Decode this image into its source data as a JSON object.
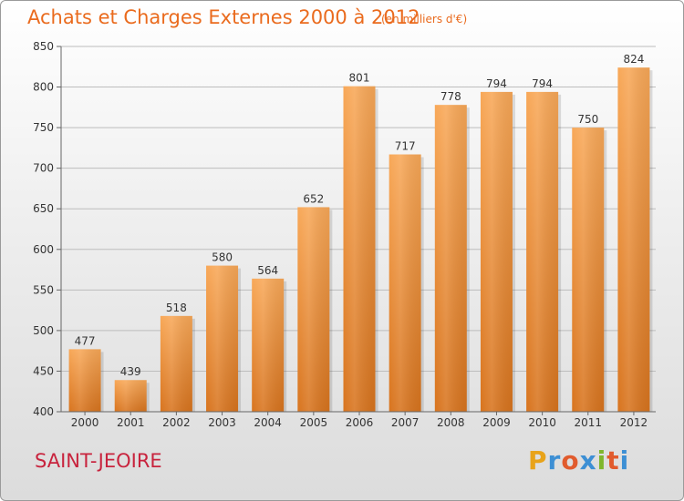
{
  "header": {
    "title": "Achats et Charges Externes 2000 à 2012",
    "subtitle": "(en milliers d'€)"
  },
  "footer": {
    "commune": "SAINT-JEOIRE",
    "logo_letters": [
      "P",
      "r",
      "o",
      "x",
      "i",
      "t",
      "i"
    ],
    "logo_colors": [
      "#e8a31a",
      "#3d8fd4",
      "#e15b2d",
      "#3d8fd4",
      "#7fb62c",
      "#e15b2d",
      "#3d8fd4"
    ]
  },
  "colors": {
    "bar_light": "#f8a858",
    "bar_dark": "#d8741e",
    "grid": "#bdbdbd",
    "axis_text": "#333333",
    "title": "#ea6b1e",
    "commune": "#c8233d"
  },
  "chart_data": {
    "type": "bar",
    "title": "Achats et Charges Externes 2000 à 2012",
    "subtitle": "(en milliers d'€)",
    "xlabel": "",
    "ylabel": "",
    "categories": [
      "2000",
      "2001",
      "2002",
      "2003",
      "2004",
      "2005",
      "2006",
      "2007",
      "2008",
      "2009",
      "2010",
      "2011",
      "2012"
    ],
    "values": [
      477,
      439,
      518,
      580,
      564,
      652,
      801,
      717,
      778,
      794,
      794,
      750,
      824
    ],
    "ylim": [
      400,
      850
    ],
    "yticks": [
      400,
      450,
      500,
      550,
      600,
      650,
      700,
      750,
      800,
      850
    ],
    "grid": true,
    "data_labels": true
  }
}
